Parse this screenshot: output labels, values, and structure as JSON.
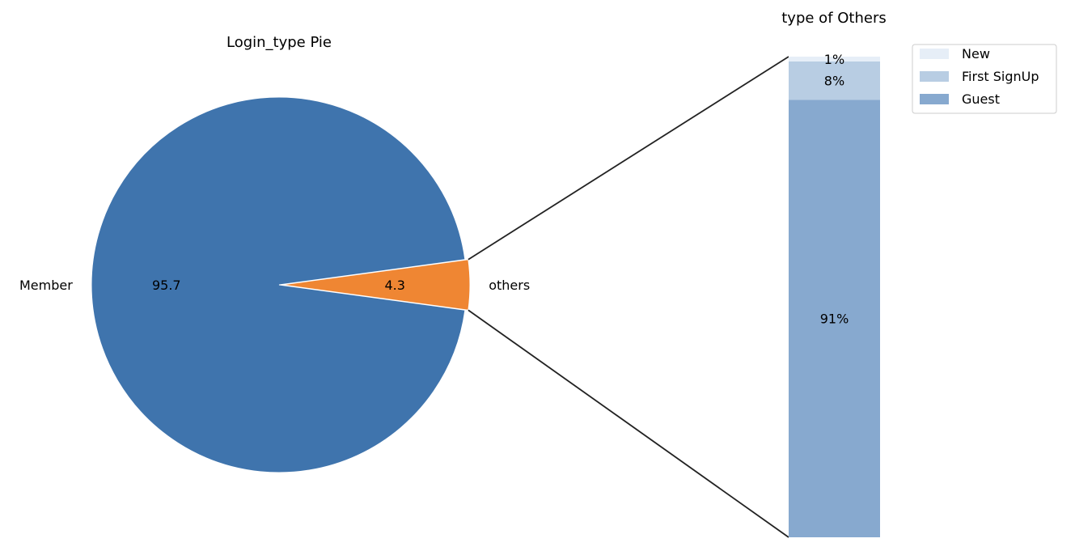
{
  "chart_data": [
    {
      "type": "pie",
      "title": "Login_type Pie",
      "categories": [
        "Member",
        "others"
      ],
      "values": [
        95.7,
        4.3
      ],
      "value_labels": [
        "95.7",
        "4.3"
      ],
      "colors": [
        "#3f74ad",
        "#ef8633"
      ],
      "exploded": "others"
    },
    {
      "type": "bar",
      "title": "type of Others",
      "stacked": true,
      "series": [
        {
          "name": "Guest",
          "value": 91,
          "label": "91%",
          "color": "#87a9cf"
        },
        {
          "name": "First SignUp",
          "value": 8,
          "label": "8%",
          "color": "#b8cde3"
        },
        {
          "name": "New",
          "value": 1,
          "label": "1%",
          "color": "#e6eef7"
        }
      ],
      "legend": [
        "New",
        "First SignUp",
        "Guest"
      ],
      "legend_placement": "top-right"
    }
  ]
}
